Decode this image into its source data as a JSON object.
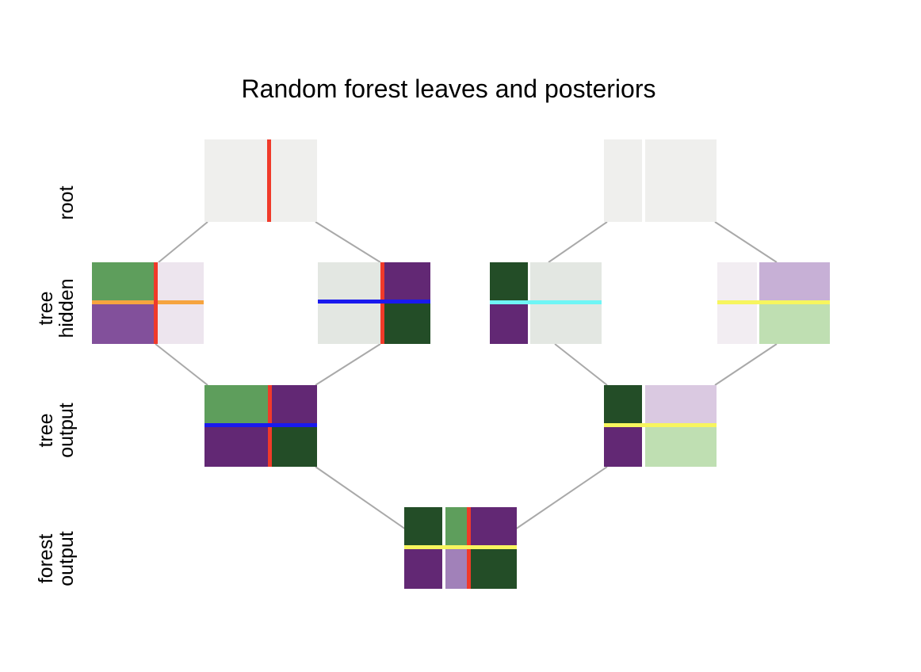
{
  "title": "Random forest leaves and posteriors",
  "row_labels": [
    {
      "id": "root",
      "lines": [
        "root"
      ]
    },
    {
      "id": "tree-hidden",
      "lines": [
        "tree",
        "hidden"
      ]
    },
    {
      "id": "tree-output",
      "lines": [
        "tree",
        "output"
      ]
    },
    {
      "id": "forest-output",
      "lines": [
        "forest",
        "output"
      ]
    }
  ],
  "colors": {
    "light_grey": "#efefed",
    "light_grey_green": "#e3e7e2",
    "medium_green": "#5e9e5c",
    "dark_green": "#234d27",
    "purple": "#82509b",
    "dark_purple": "#622874",
    "light_lavender": "#ede5ee",
    "lavender": "#c7b0d6",
    "light_lavender_2": "#dac9e1",
    "light_green": "#bfdfb2",
    "mid_lavender": "#a181b9",
    "very_light_pink": "#f2edf2",
    "red_split": "#f03a2a",
    "orange_split": "#f6a43f",
    "blue_split": "#1a1aee",
    "cyan_split": "#6ff5f5",
    "yellow_split": "#f7f55e",
    "connector": "#a9a9a9"
  }
}
